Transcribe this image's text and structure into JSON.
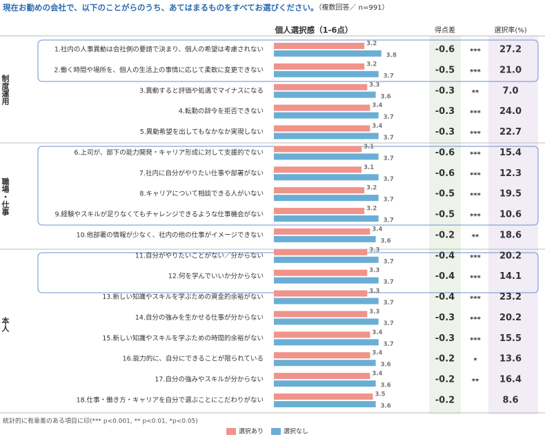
{
  "chart_data": {
    "type": "bar",
    "orientation": "horizontal",
    "title": "現在お勤めの会社で、以下のことがらのうち、あてはまるものをすべてお選びください。",
    "subtitle": "（複数回答／ n=991）",
    "bar_header": "個人選択感（1-6点）",
    "diff_header": "得点差",
    "rate_header": "選択率(%)",
    "groups": [
      "制度運用",
      "職場・仕事",
      "本人"
    ],
    "categories": [
      "1.社内の人事異動は会社側の要請で決まり、個人の希望は考慮されない",
      "2.働く時間や場所を、個人の生活上の事情に応じて柔軟に変更できない",
      "3.異動すると評価や処遇でマイナスになる",
      "4.転勤の辞令を拒否できない",
      "5.異動希望を出してもなかなか実現しない",
      "6.上司が、部下の能力開発・キャリア形成に対して支援的でない",
      "7.社内に自分がやりたい仕事や部署がない",
      "8.キャリアについて相談できる人がいない",
      "9.経験やスキルが足りなくてもチャレンジできるような仕事機会がない",
      "10.他部署の情報が少なく、社内の他の仕事がイメージできない",
      "11.自分がやりたいことがない／分からない",
      "12.何を学んでいいか分からない",
      "13.新しい知識やスキルを学ぶための資金的余裕がない",
      "14.自分の強みを生かせる仕事が分からない",
      "15.新しい知識やスキルを学ぶための時間的余裕がない",
      "16.能力的に、自分にできることが限られている",
      "17.自分の強みやスキルが分からない",
      "18.仕事・働き方・キャリアを自分で選ぶことにこだわりがない"
    ],
    "series": [
      {
        "name": "選択あり",
        "color": "#f0938a",
        "values": [
          3.2,
          3.2,
          3.3,
          3.4,
          3.4,
          3.1,
          3.1,
          3.2,
          3.2,
          3.4,
          3.3,
          3.3,
          3.3,
          3.3,
          3.4,
          3.4,
          3.4,
          3.5
        ]
      },
      {
        "name": "選択なし",
        "color": "#6aaed6",
        "values": [
          3.8,
          3.7,
          3.6,
          3.7,
          3.7,
          3.7,
          3.7,
          3.7,
          3.7,
          3.6,
          3.7,
          3.7,
          3.7,
          3.7,
          3.7,
          3.6,
          3.6,
          3.6
        ]
      }
    ],
    "diff": [
      -0.6,
      -0.5,
      -0.3,
      -0.3,
      -0.3,
      -0.6,
      -0.6,
      -0.5,
      -0.5,
      -0.2,
      -0.4,
      -0.4,
      -0.4,
      -0.3,
      -0.3,
      -0.2,
      -0.2,
      -0.2
    ],
    "significance": [
      "***",
      "***",
      "**",
      "***",
      "***",
      "***",
      "***",
      "***",
      "***",
      "**",
      "***",
      "***",
      "***",
      "***",
      "***",
      "*",
      "**",
      null
    ],
    "rate": {
      "values": [
        27.2,
        21,
        7,
        24,
        22.7,
        15.4,
        12.3,
        19.5,
        10.6,
        18.6,
        20.2,
        14.1,
        23.2,
        20.2,
        15.5,
        13.6,
        16.4,
        8.6
      ],
      "value_labels": [
        "27.2",
        "21.0",
        "7.0",
        "24.0",
        "22.7",
        "15.4",
        "12.3",
        "19.5",
        "10.6",
        "18.6",
        "20.2",
        "14.1",
        "23.2",
        "20.2",
        "15.5",
        "13.6",
        "16.4",
        "8.6"
      ]
    },
    "footnote": "統計的に有意差のある項目に印(*** p<0.001, ** p<0.01, *p<0.05)"
  }
}
